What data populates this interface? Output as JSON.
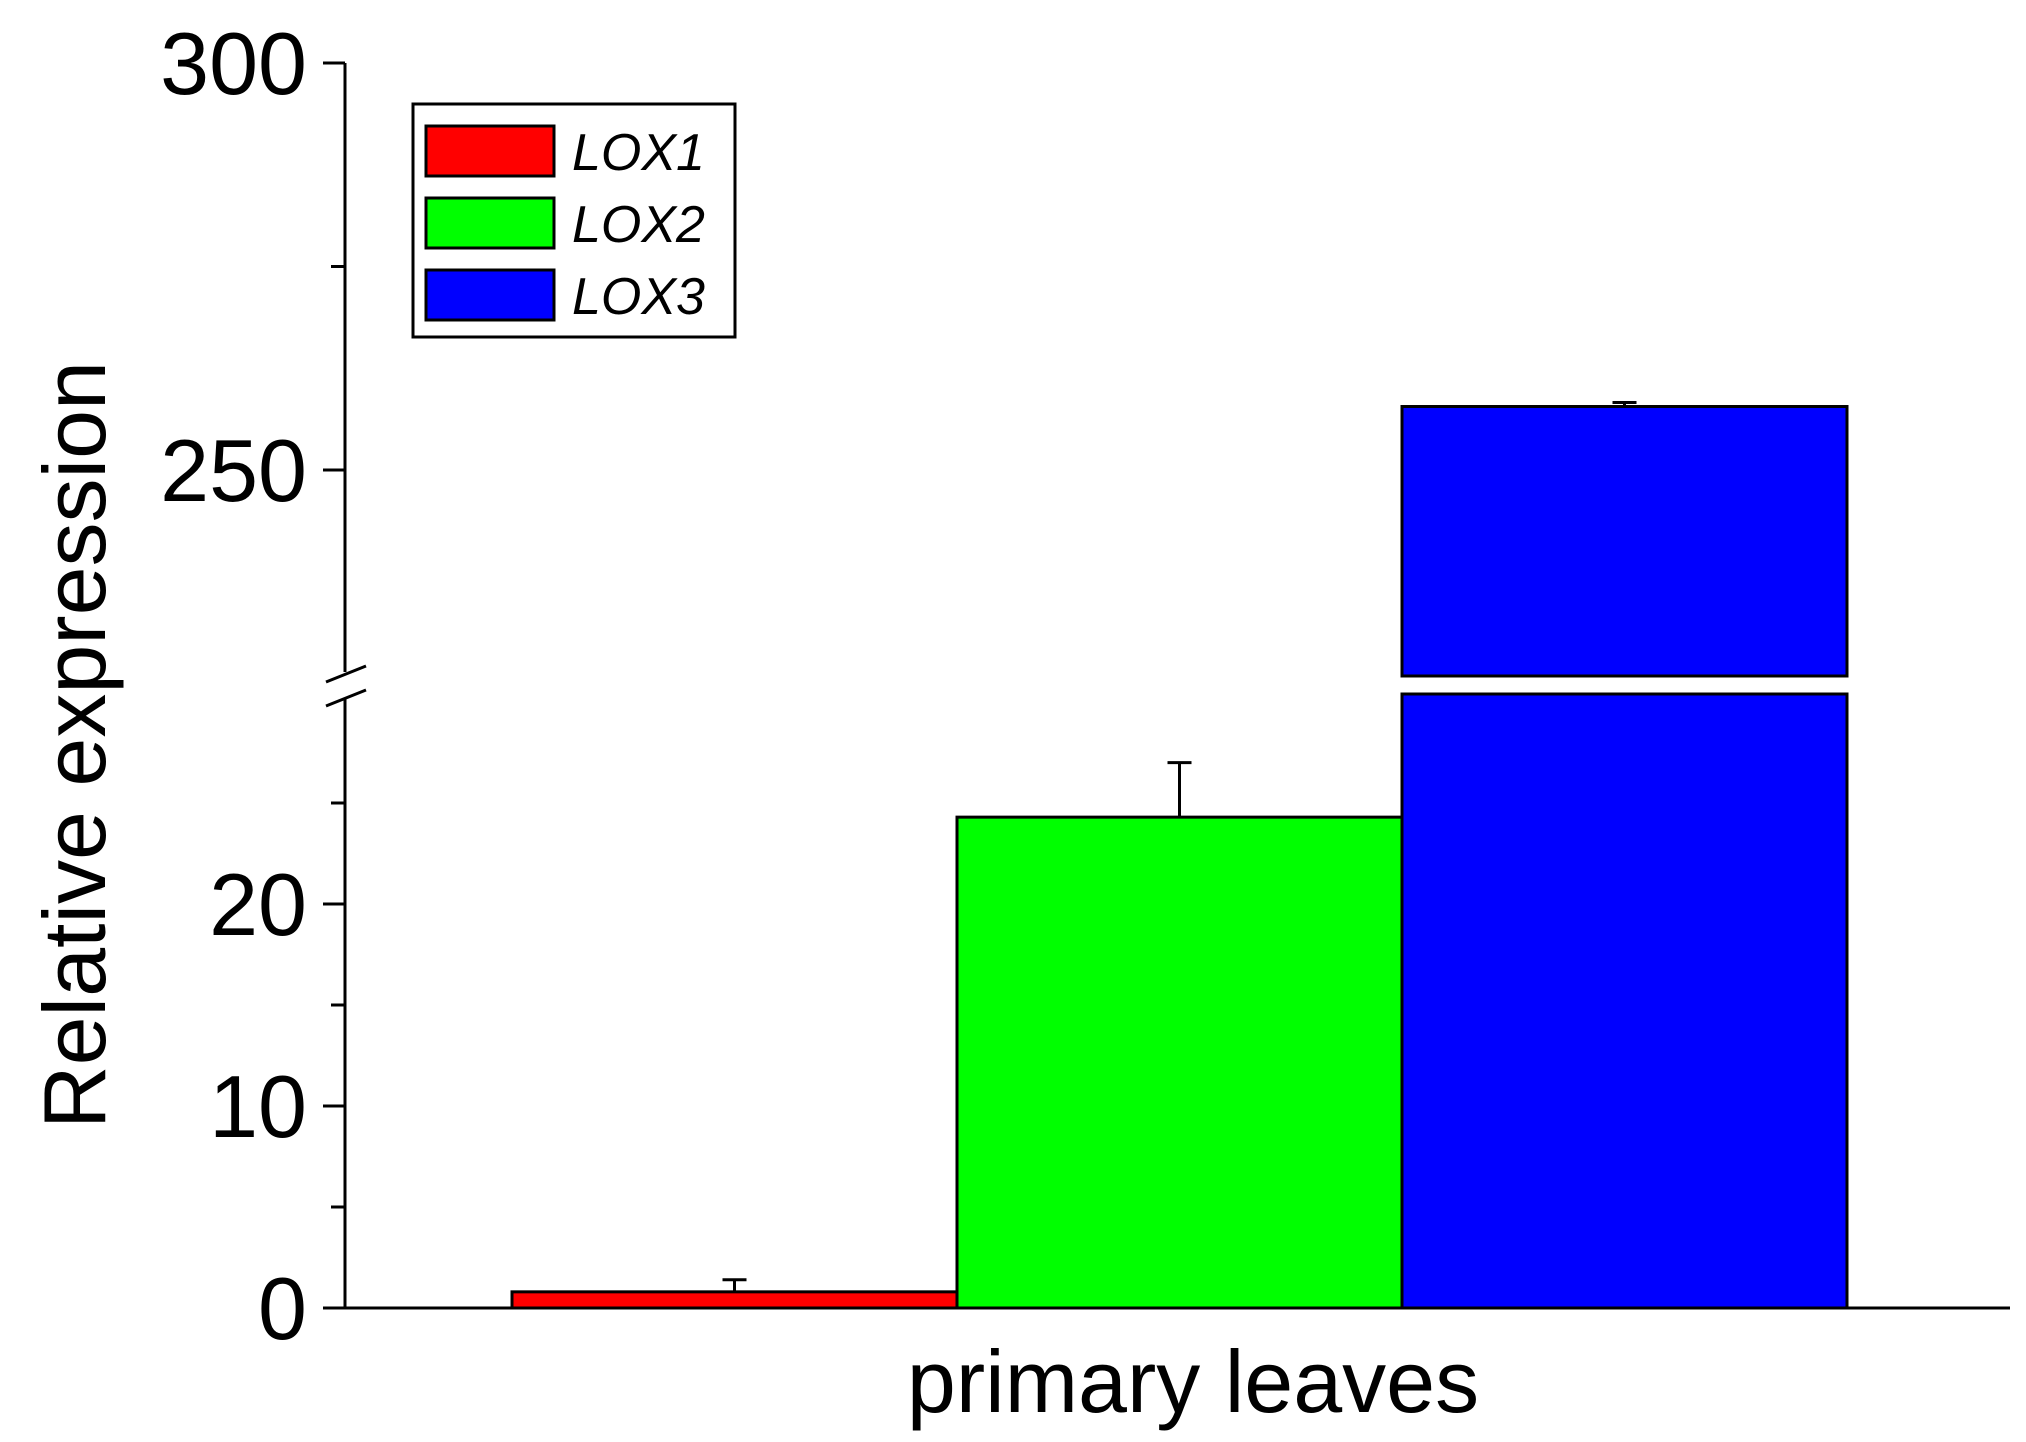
{
  "chart_data": {
    "type": "bar",
    "xlabel": "primary leaves",
    "ylabel": "Relative expression",
    "axis_break": {
      "lower": [
        0,
        30
      ],
      "upper": [
        230,
        300
      ]
    },
    "lower_ticks": [
      "0",
      "10",
      "20"
    ],
    "upper_ticks": [
      "250",
      "300"
    ],
    "categories": [
      "primary leaves"
    ],
    "legend_position": "top-left",
    "series": [
      {
        "name": "LOX1",
        "color": "#ff0000",
        "value": 0.8,
        "error": 0.6
      },
      {
        "name": "LOX2",
        "color": "#00ff00",
        "value": 24.3,
        "error": 2.7
      },
      {
        "name": "LOX3",
        "color": "#0000ff",
        "value": 257.8,
        "error": 0.5
      }
    ]
  }
}
